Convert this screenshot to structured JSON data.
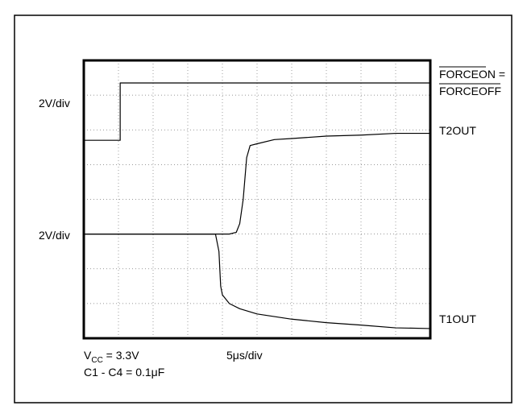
{
  "chart_data": {
    "type": "line",
    "x_divisions": 10,
    "y_divisions": 8,
    "grid": true,
    "series": [
      {
        "name": "FORCEON = FORCEOFF",
        "name_parts": [
          "FORCEON =",
          "FORCEOFF"
        ],
        "points": [
          [
            0,
            5.7
          ],
          [
            1.05,
            5.7
          ],
          [
            1.05,
            7.35
          ],
          [
            10,
            7.35
          ]
        ]
      },
      {
        "name": "T2OUT",
        "points": [
          [
            0,
            3.0
          ],
          [
            4.2,
            3.0
          ],
          [
            4.4,
            3.05
          ],
          [
            4.5,
            3.3
          ],
          [
            4.6,
            4.0
          ],
          [
            4.7,
            5.2
          ],
          [
            4.8,
            5.55
          ],
          [
            5.0,
            5.6
          ],
          [
            5.5,
            5.72
          ],
          [
            6.0,
            5.75
          ],
          [
            7.0,
            5.82
          ],
          [
            8.0,
            5.85
          ],
          [
            9.0,
            5.9
          ],
          [
            10,
            5.9
          ]
        ]
      },
      {
        "name": "T1OUT",
        "points": [
          [
            0,
            3.0
          ],
          [
            3.8,
            3.0
          ],
          [
            3.9,
            2.5
          ],
          [
            3.95,
            1.5
          ],
          [
            4.0,
            1.25
          ],
          [
            4.2,
            1.0
          ],
          [
            4.5,
            0.85
          ],
          [
            5.0,
            0.7
          ],
          [
            6.0,
            0.55
          ],
          [
            7.0,
            0.45
          ],
          [
            8.0,
            0.38
          ],
          [
            9.0,
            0.3
          ],
          [
            10,
            0.28
          ]
        ]
      }
    ],
    "y_scale_labels": [
      "2V/div",
      "2V/div"
    ],
    "x_scale_label": "5μs/div",
    "conditions": {
      "vcc_label_main": "V",
      "vcc_label_sub": "CC",
      "vcc_value": " = 3.3V",
      "caps": "C1 - C4 = 0.1μF"
    }
  }
}
